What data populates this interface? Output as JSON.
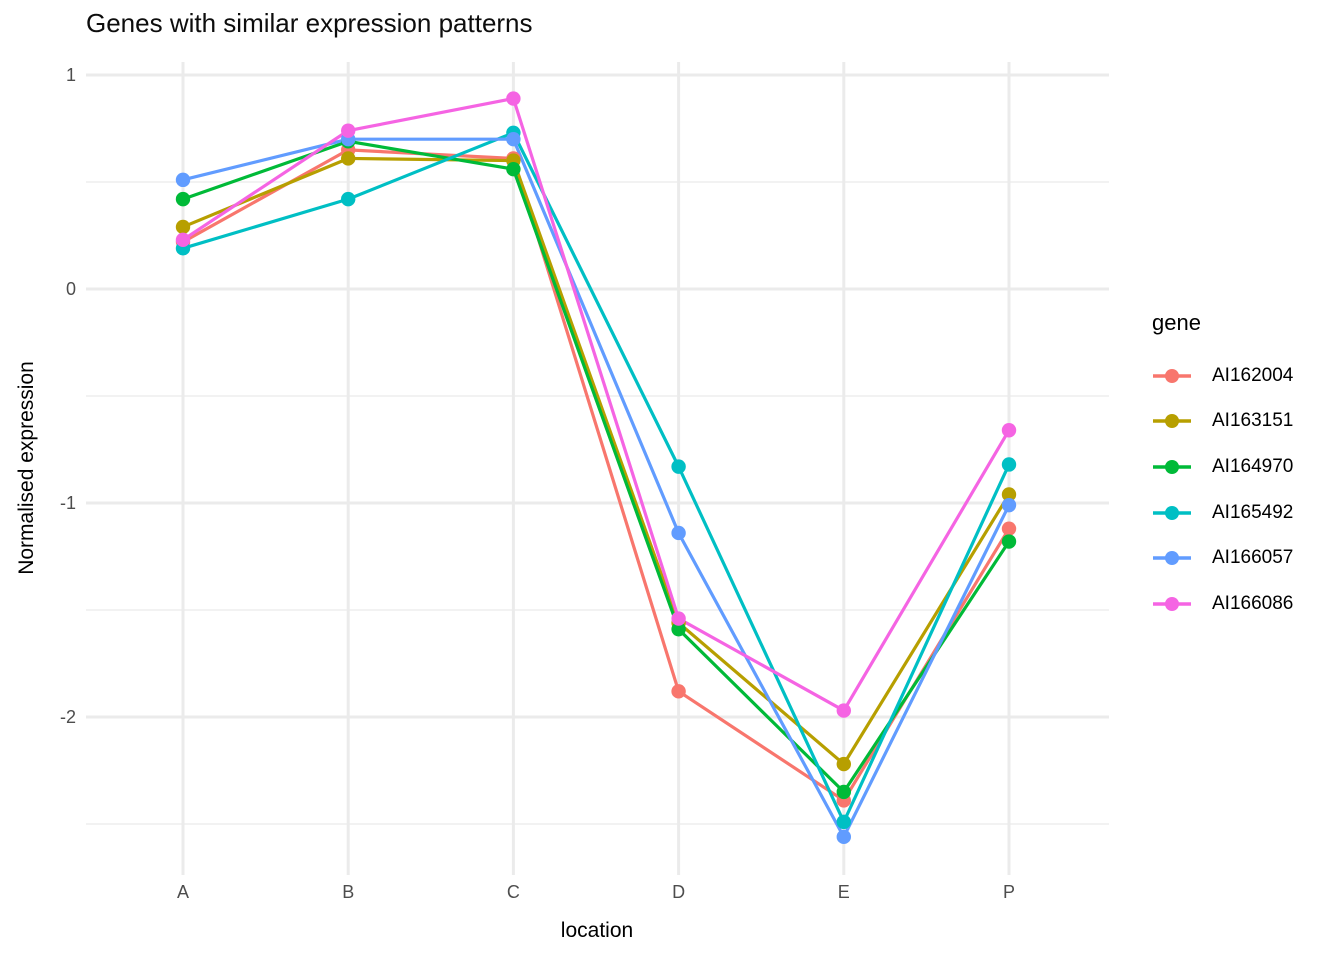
{
  "chart_data": {
    "type": "line",
    "title": "Genes with similar expression patterns",
    "xlabel": "location",
    "ylabel": "Normalised expression",
    "categories": [
      "A",
      "B",
      "C",
      "D",
      "E",
      "P"
    ],
    "y_ticks": [
      1,
      0,
      -1,
      -2
    ],
    "y_minor_ticks": [
      0.5,
      -0.5,
      -1.5,
      -2.5
    ],
    "ylim": [
      -2.72,
      1.05
    ],
    "grid": "major-and-minor, light gray on white",
    "legend_title": "gene",
    "legend_position": "right",
    "marker": "circle",
    "series": [
      {
        "name": "AI162004",
        "color": "#F8766D",
        "values": [
          0.22,
          0.65,
          0.61,
          -1.88,
          -2.39,
          -1.12
        ]
      },
      {
        "name": "AI163151",
        "color": "#B79F00",
        "values": [
          0.29,
          0.61,
          0.6,
          -1.56,
          -2.22,
          -0.96
        ]
      },
      {
        "name": "AI164970",
        "color": "#00BA38",
        "values": [
          0.42,
          0.69,
          0.56,
          -1.59,
          -2.35,
          -1.18
        ]
      },
      {
        "name": "AI165492",
        "color": "#00BFC4",
        "values": [
          0.19,
          0.42,
          0.73,
          -0.83,
          -2.49,
          -0.82
        ]
      },
      {
        "name": "AI166057",
        "color": "#619CFF",
        "values": [
          0.51,
          0.7,
          0.7,
          -1.14,
          -2.56,
          -1.01
        ]
      },
      {
        "name": "AI166086",
        "color": "#F564E3",
        "values": [
          0.23,
          0.74,
          0.89,
          -1.54,
          -1.97,
          -0.66
        ]
      }
    ],
    "colors": {
      "grid_major": "#EBEBEB",
      "grid_minor": "#F0F0F0",
      "tick_text": "#4D4D4D",
      "title_text": "#0D0D0D"
    }
  }
}
